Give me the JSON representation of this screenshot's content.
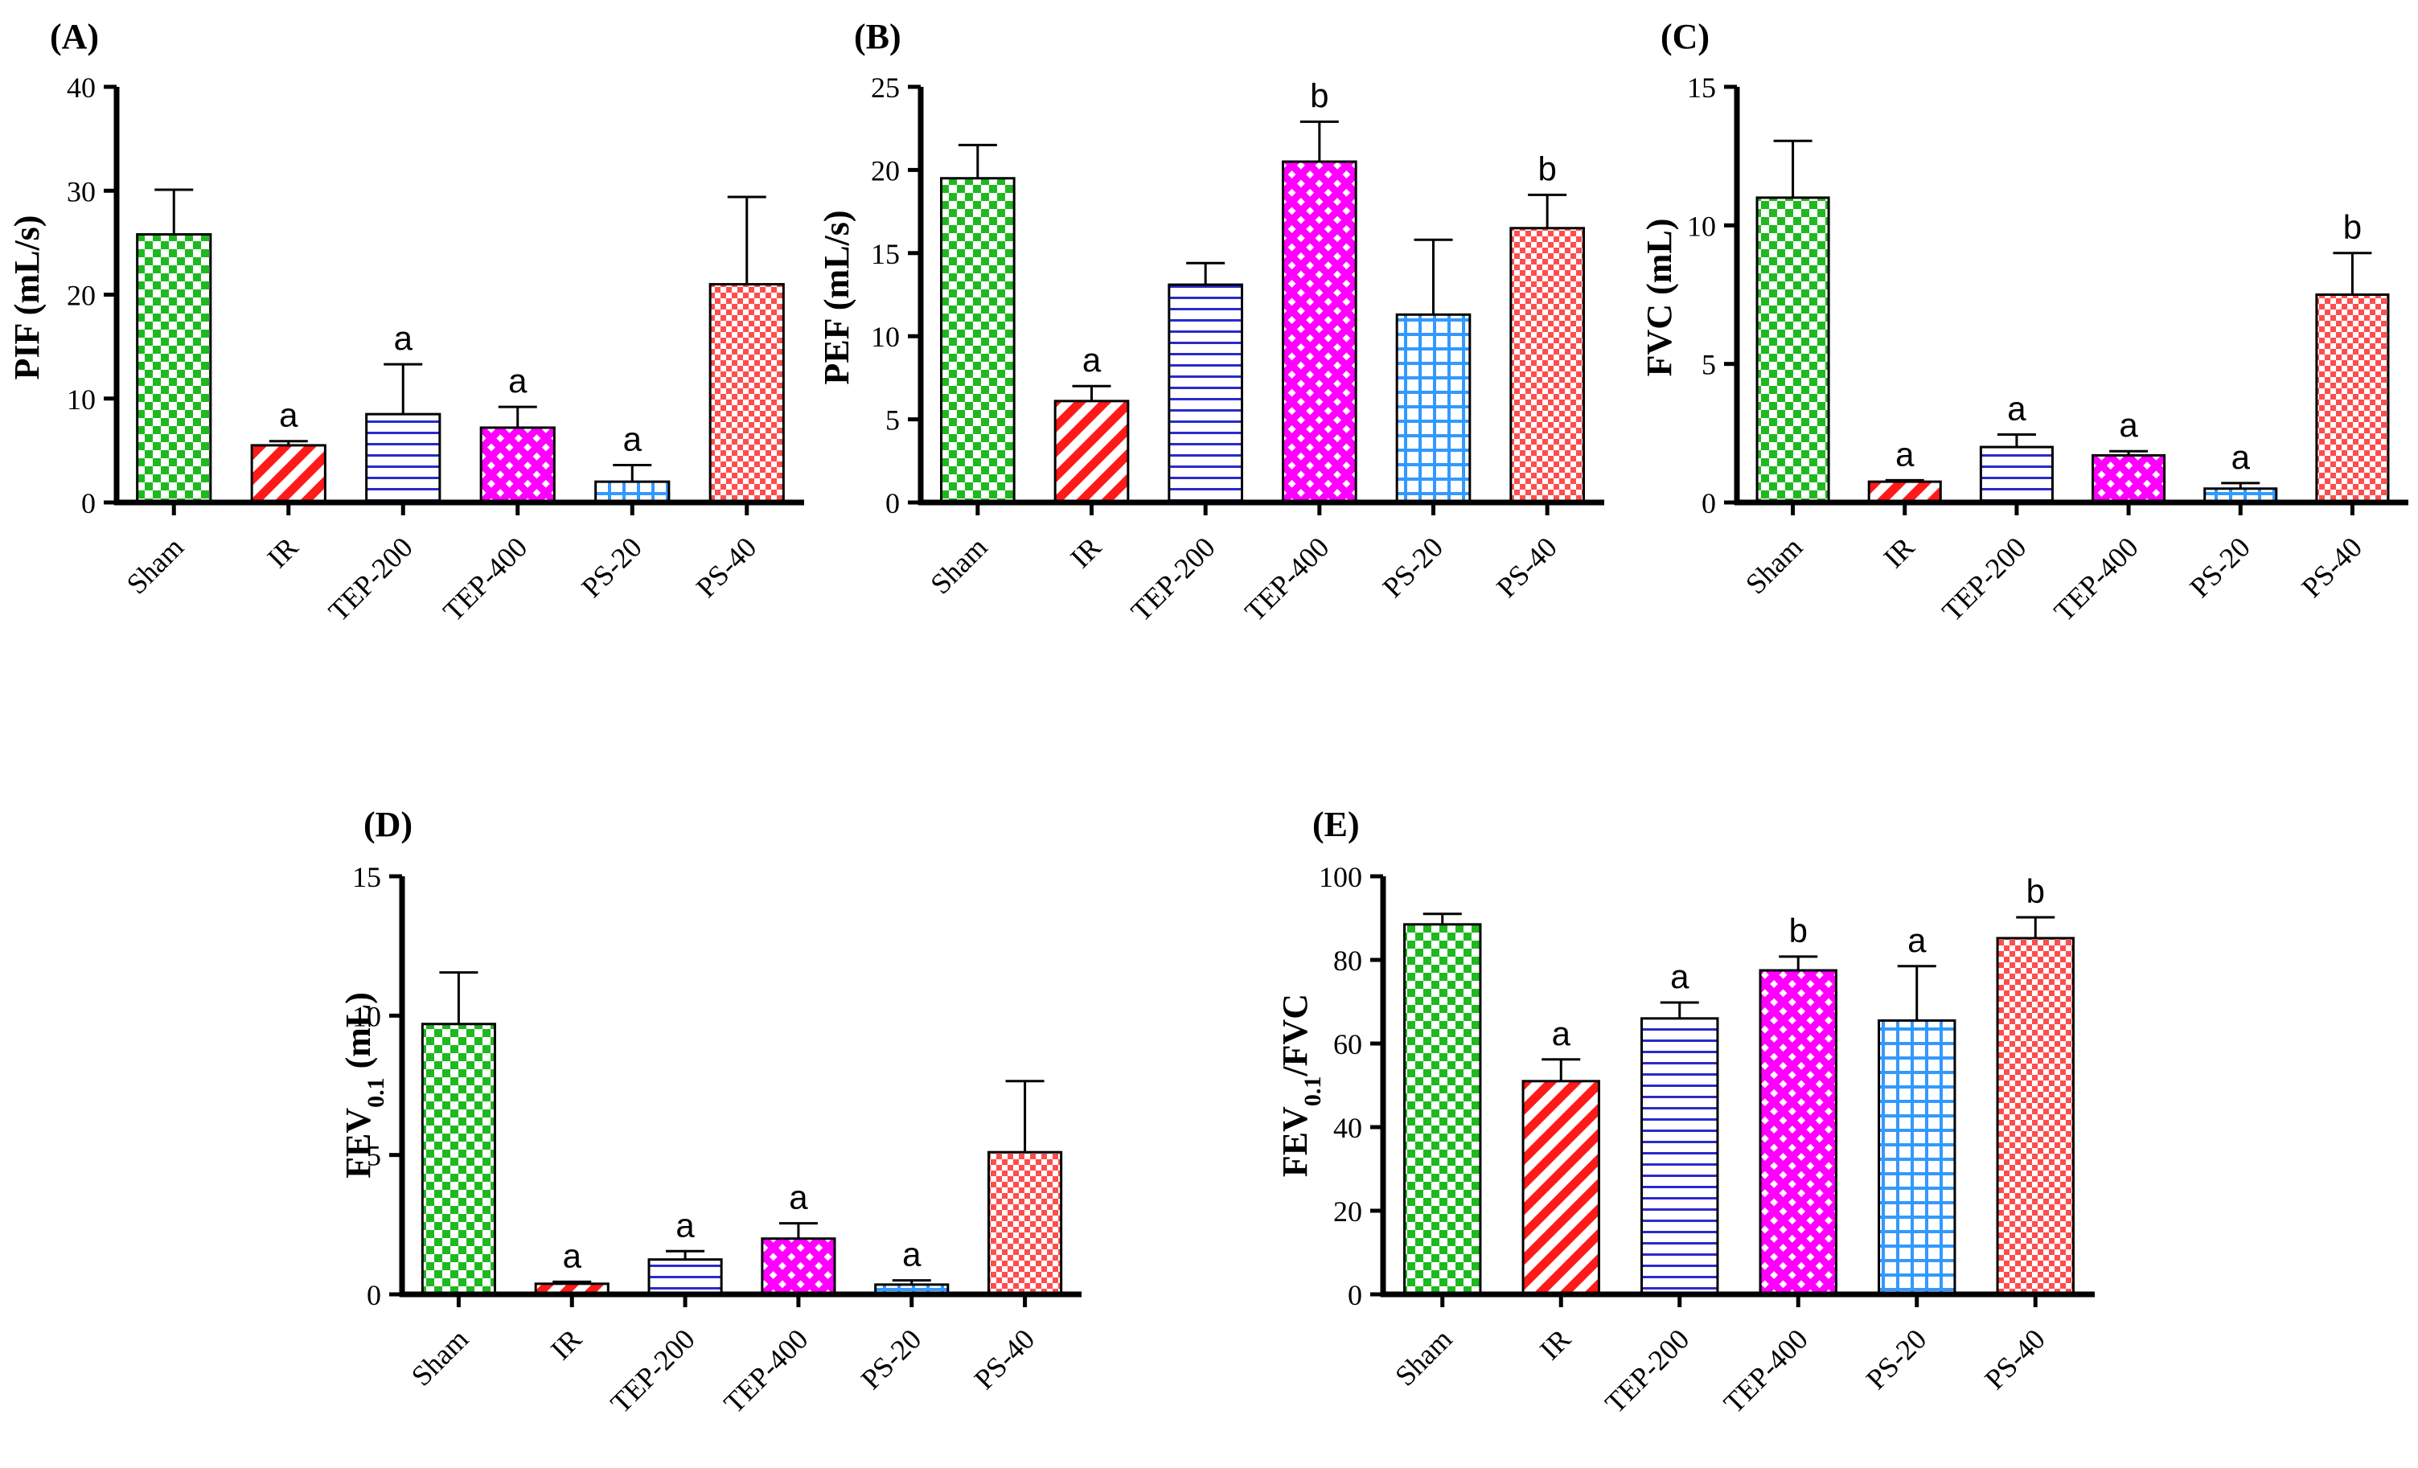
{
  "figure": {
    "groups": [
      "Sham",
      "IR",
      "TEP-200",
      "TEP-400",
      "PS-20",
      "PS-40"
    ],
    "group_colors": [
      "#1fb81f",
      "#ff1a1a",
      "#2a2acc",
      "#ff00ff",
      "#3399ff",
      "#ff4d4d"
    ]
  },
  "chart_data": [
    {
      "type": "bar",
      "panel_label": "(A)",
      "ylabel": "PIF (mL/s)",
      "ylabel_parts": [
        {
          "t": "PIF (mL/s)"
        }
      ],
      "categories": [
        "Sham",
        "IR",
        "TEP-200",
        "TEP-400",
        "PS-20",
        "PS-40"
      ],
      "values": [
        25.8,
        5.5,
        8.5,
        7.2,
        2.0,
        21.0
      ],
      "errors": [
        4.3,
        0.4,
        4.8,
        2.0,
        1.6,
        8.4
      ],
      "significance": [
        "",
        "a",
        "a",
        "a",
        "a",
        ""
      ],
      "ylim": [
        0,
        40
      ],
      "yticks": [
        "0",
        "10",
        "20",
        "30",
        "40"
      ]
    },
    {
      "type": "bar",
      "panel_label": "(B)",
      "ylabel": "PEF (mL/s)",
      "ylabel_parts": [
        {
          "t": "PEF (mL/s)"
        }
      ],
      "categories": [
        "Sham",
        "IR",
        "TEP-200",
        "TEP-400",
        "PS-20",
        "PS-40"
      ],
      "values": [
        19.5,
        6.1,
        13.1,
        20.5,
        11.3,
        16.5
      ],
      "errors": [
        2.0,
        0.9,
        1.3,
        2.4,
        4.5,
        2.0
      ],
      "significance": [
        "",
        "a",
        "",
        "b",
        "",
        "b"
      ],
      "ylim": [
        0,
        25
      ],
      "yticks": [
        "0",
        "5",
        "10",
        "15",
        "20",
        "25"
      ]
    },
    {
      "type": "bar",
      "panel_label": "(C)",
      "ylabel": "FVC (mL)",
      "ylabel_parts": [
        {
          "t": "FVC (mL)"
        }
      ],
      "categories": [
        "Sham",
        "IR",
        "TEP-200",
        "TEP-400",
        "PS-20",
        "PS-40"
      ],
      "values": [
        11.0,
        0.75,
        2.0,
        1.7,
        0.5,
        7.5
      ],
      "errors": [
        2.05,
        0.05,
        0.45,
        0.15,
        0.2,
        1.5
      ],
      "significance": [
        "",
        "a",
        "a",
        "a",
        "a",
        "b"
      ],
      "ylim": [
        0,
        15
      ],
      "yticks": [
        "0",
        "5",
        "10",
        "15"
      ]
    },
    {
      "type": "bar",
      "panel_label": "(D)",
      "ylabel": "FEV0.1 (mL)",
      "ylabel_parts": [
        {
          "t": "FEV"
        },
        {
          "t": "0.1",
          "sub": true
        },
        {
          "t": " (mL)"
        }
      ],
      "categories": [
        "Sham",
        "IR",
        "TEP-200",
        "TEP-400",
        "PS-20",
        "PS-40"
      ],
      "values": [
        9.7,
        0.38,
        1.25,
        2.0,
        0.35,
        5.1
      ],
      "errors": [
        1.85,
        0.07,
        0.3,
        0.55,
        0.15,
        2.55
      ],
      "significance": [
        "",
        "a",
        "a",
        "a",
        "a",
        ""
      ],
      "ylim": [
        0,
        15
      ],
      "yticks": [
        "0",
        "5",
        "10",
        "15"
      ]
    },
    {
      "type": "bar",
      "panel_label": "(E)",
      "ylabel": "FEV0.1/FVC",
      "ylabel_parts": [
        {
          "t": "FEV"
        },
        {
          "t": "0.1",
          "sub": true
        },
        {
          "t": "/FVC"
        }
      ],
      "categories": [
        "Sham",
        "IR",
        "TEP-200",
        "TEP-400",
        "PS-20",
        "PS-40"
      ],
      "values": [
        88.5,
        51.0,
        66.0,
        77.5,
        65.5,
        85.2
      ],
      "errors": [
        2.5,
        5.2,
        3.8,
        3.3,
        13.0,
        5.0
      ],
      "significance": [
        "",
        "a",
        "a",
        "b",
        "a",
        "b"
      ],
      "ylim": [
        0,
        100
      ],
      "yticks": [
        "0",
        "20",
        "40",
        "60",
        "80",
        "100"
      ]
    }
  ]
}
